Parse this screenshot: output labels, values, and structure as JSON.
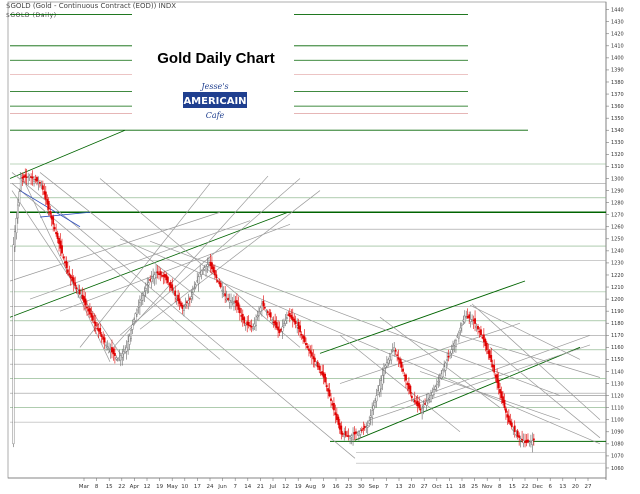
{
  "header": {
    "line1": "$GOLD (Gold - Continuous Contract (EOD)) INDX",
    "line2": "$GOLD (Daily)"
  },
  "logo": {
    "top": "Jesse's",
    "middle": "AMERICAIN",
    "bottom": "Cafe"
  },
  "colors": {
    "background": "#ffffff",
    "down_candle": "#e00000",
    "up_candle": "#ffffff",
    "trend_green": "#006400",
    "trend_grey": "#9a9a9a",
    "resistance_red": "#d88a8a"
  },
  "chart_data": {
    "type": "candlestick",
    "title": "Gold Daily Chart",
    "ylim": [
      1055,
      1443
    ],
    "y_ticks": [
      1060,
      1070,
      1080,
      1090,
      1100,
      1110,
      1120,
      1130,
      1140,
      1150,
      1160,
      1170,
      1180,
      1190,
      1200,
      1210,
      1220,
      1230,
      1240,
      1250,
      1260,
      1270,
      1280,
      1290,
      1300,
      1310,
      1320,
      1330,
      1340,
      1350,
      1360,
      1370,
      1380,
      1390,
      1400,
      1410,
      1420,
      1430,
      1440
    ],
    "x_labels": [
      "Mar",
      "8",
      "15",
      "22",
      "Apr",
      "12",
      "19",
      "May",
      "10",
      "17",
      "24",
      "Jun",
      "7",
      "14",
      "21",
      "Jul",
      "12",
      "19",
      "Aug",
      "9",
      "16",
      "23",
      "30",
      "Sep",
      "7",
      "13",
      "20",
      "27",
      "Oct",
      "11",
      "18",
      "25",
      "Nov",
      "8",
      "15",
      "22",
      "Dec",
      "6",
      "13",
      "20",
      "27"
    ],
    "grid": true,
    "legend": "none",
    "price_path": [
      [
        1,
        1245
      ],
      [
        6,
        1300
      ],
      [
        12,
        1302
      ],
      [
        20,
        1295
      ],
      [
        28,
        1262
      ],
      [
        38,
        1222
      ],
      [
        48,
        1200
      ],
      [
        56,
        1180
      ],
      [
        64,
        1162
      ],
      [
        72,
        1150
      ],
      [
        78,
        1160
      ],
      [
        84,
        1188
      ],
      [
        92,
        1212
      ],
      [
        98,
        1222
      ],
      [
        104,
        1218
      ],
      [
        110,
        1205
      ],
      [
        116,
        1192
      ],
      [
        122,
        1202
      ],
      [
        128,
        1222
      ],
      [
        134,
        1230
      ],
      [
        140,
        1215
      ],
      [
        146,
        1200
      ],
      [
        152,
        1197
      ],
      [
        158,
        1180
      ],
      [
        164,
        1176
      ],
      [
        170,
        1196
      ],
      [
        176,
        1185
      ],
      [
        182,
        1172
      ],
      [
        188,
        1187
      ],
      [
        194,
        1178
      ],
      [
        200,
        1162
      ],
      [
        206,
        1148
      ],
      [
        212,
        1135
      ],
      [
        218,
        1112
      ],
      [
        224,
        1088
      ],
      [
        230,
        1086
      ],
      [
        236,
        1090
      ],
      [
        242,
        1095
      ],
      [
        248,
        1120
      ],
      [
        254,
        1145
      ],
      [
        260,
        1160
      ],
      [
        266,
        1140
      ],
      [
        272,
        1118
      ],
      [
        278,
        1108
      ],
      [
        284,
        1118
      ],
      [
        290,
        1132
      ],
      [
        296,
        1150
      ],
      [
        302,
        1166
      ],
      [
        308,
        1186
      ],
      [
        314,
        1182
      ],
      [
        320,
        1168
      ],
      [
        326,
        1148
      ],
      [
        332,
        1122
      ],
      [
        338,
        1098
      ],
      [
        344,
        1086
      ],
      [
        350,
        1081
      ],
      [
        355,
        1083
      ]
    ]
  }
}
